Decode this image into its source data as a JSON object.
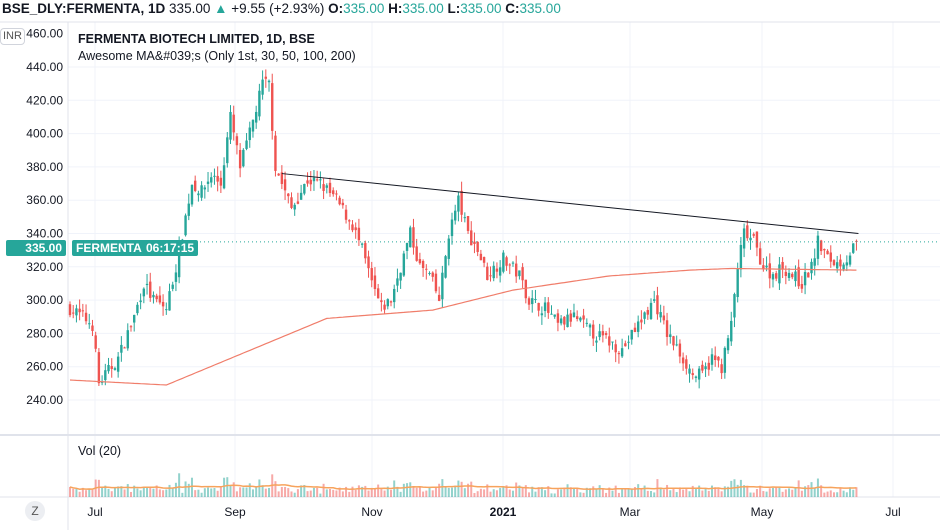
{
  "header": {
    "symbol": "BSE_DLY:FERMENTA, 1D",
    "last": "335.00",
    "change": "+9.55 (+2.93%)",
    "o_label": "O:",
    "o": "335.00",
    "h_label": "H:",
    "h": "335.00",
    "l_label": "L:",
    "l": "335.00",
    "c_label": "C:",
    "c": "335.00"
  },
  "legend": {
    "title": "FERMENTA BIOTECH LIMITED, 1D, BSE",
    "indicator": "Awesome MA&#039;s (Only 1st, 30, 50, 100, 200)",
    "volume": "Vol (20)"
  },
  "currency": "INR",
  "price_label": {
    "value": "335.00",
    "countdown": "06:17:15",
    "symbol": "FERMENTA"
  },
  "zoom_button": "Z",
  "colors": {
    "up": "#26a69a",
    "down": "#ef5350",
    "ma": "#f07d6a",
    "volma": "#f7a35c"
  },
  "chart_data": {
    "type": "candlestick",
    "y_ticks": [
      "460.00",
      "440.00",
      "420.00",
      "400.00",
      "380.00",
      "360.00",
      "340.00",
      "320.00",
      "300.00",
      "280.00",
      "260.00",
      "240.00"
    ],
    "ylim": [
      240,
      440
    ],
    "x_ticks": [
      "Jul",
      "Sep",
      "Nov",
      "2021",
      "Mar",
      "May",
      "Jul"
    ],
    "close_path": [
      [
        0,
        295
      ],
      [
        4,
        290
      ],
      [
        7,
        285
      ],
      [
        9,
        250
      ],
      [
        11,
        255
      ],
      [
        15,
        265
      ],
      [
        20,
        290
      ],
      [
        23,
        310
      ],
      [
        26,
        300
      ],
      [
        30,
        295
      ],
      [
        33,
        320
      ],
      [
        35,
        340
      ],
      [
        38,
        370
      ],
      [
        41,
        365
      ],
      [
        44,
        375
      ],
      [
        47,
        370
      ],
      [
        50,
        410
      ],
      [
        53,
        380
      ],
      [
        56,
        400
      ],
      [
        60,
        430
      ],
      [
        62,
        430
      ],
      [
        64,
        380
      ],
      [
        66,
        370
      ],
      [
        69,
        355
      ],
      [
        74,
        372
      ],
      [
        78,
        370
      ],
      [
        83,
        360
      ],
      [
        88,
        345
      ],
      [
        91,
        330
      ],
      [
        94,
        310
      ],
      [
        97,
        295
      ],
      [
        100,
        300
      ],
      [
        103,
        320
      ],
      [
        106,
        340
      ],
      [
        109,
        320
      ],
      [
        112,
        315
      ],
      [
        115,
        300
      ],
      [
        118,
        340
      ],
      [
        121,
        360
      ],
      [
        124,
        340
      ],
      [
        127,
        330
      ],
      [
        130,
        315
      ],
      [
        135,
        325
      ],
      [
        140,
        315
      ],
      [
        143,
        300
      ],
      [
        148,
        295
      ],
      [
        152,
        285
      ],
      [
        157,
        290
      ],
      [
        163,
        280
      ],
      [
        168,
        275
      ],
      [
        172,
        270
      ],
      [
        177,
        285
      ],
      [
        182,
        300
      ],
      [
        186,
        280
      ],
      [
        191,
        265
      ],
      [
        194,
        255
      ],
      [
        197,
        255
      ],
      [
        200,
        265
      ],
      [
        203,
        260
      ],
      [
        206,
        285
      ],
      [
        208,
        320
      ],
      [
        210,
        340
      ],
      [
        213,
        335
      ],
      [
        216,
        320
      ],
      [
        219,
        315
      ],
      [
        222,
        320
      ],
      [
        225,
        315
      ],
      [
        228,
        310
      ],
      [
        231,
        320
      ],
      [
        233,
        335
      ],
      [
        236,
        325
      ],
      [
        239,
        322
      ],
      [
        242,
        325
      ],
      [
        245,
        335
      ]
    ],
    "ma_path": [
      [
        0,
        252
      ],
      [
        30,
        249
      ],
      [
        80,
        289
      ],
      [
        113,
        294
      ],
      [
        138,
        306
      ],
      [
        168,
        314.5
      ],
      [
        193,
        318
      ],
      [
        206,
        319
      ],
      [
        245,
        318
      ]
    ],
    "trendline": [
      [
        66,
        376
      ],
      [
        245,
        340
      ]
    ],
    "last_price": 335
  }
}
